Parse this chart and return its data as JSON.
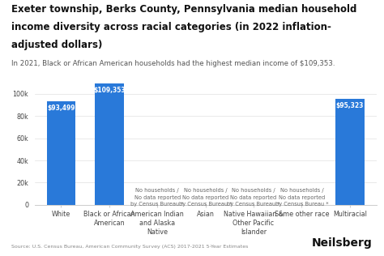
{
  "title_line1": "Exeter township, Berks County, Pennsylvania median household",
  "title_line2": "income diversity across racial categories (in 2022 inflation-",
  "title_line3": "adjusted dollars)",
  "subtitle": "In 2021, Black or African American households had the highest median income of $109,353.",
  "categories": [
    "White",
    "Black or African\nAmerican",
    "American Indian\nand Alaska\nNative",
    "Asian",
    "Native Hawaiian &\nOther Pacific\nIslander",
    "Some other race",
    "Multiracial"
  ],
  "values": [
    93499,
    109353,
    0,
    0,
    0,
    0,
    95323
  ],
  "bar_color": "#2979D9",
  "no_data_labels": [
    false,
    false,
    true,
    true,
    true,
    true,
    false
  ],
  "value_labels": [
    "$93,499",
    "$109,353",
    "",
    "",
    "",
    "",
    "$95,323"
  ],
  "no_data_text": "No households /\nNo data reported\nby Census Bureau *",
  "source": "Source: U.S. Census Bureau, American Community Survey (ACS) 2017-2021 5-Year Estimates",
  "brand": "Neilsberg",
  "ylim": [
    0,
    120000
  ],
  "yticks": [
    0,
    20000,
    40000,
    60000,
    80000,
    100000
  ],
  "background_color": "#FFFFFF",
  "title_fontsize": 8.5,
  "subtitle_fontsize": 6.2,
  "tick_fontsize": 5.8,
  "label_fontsize": 5.5,
  "no_data_fontsize": 4.8,
  "source_fontsize": 4.5,
  "brand_fontsize": 10
}
